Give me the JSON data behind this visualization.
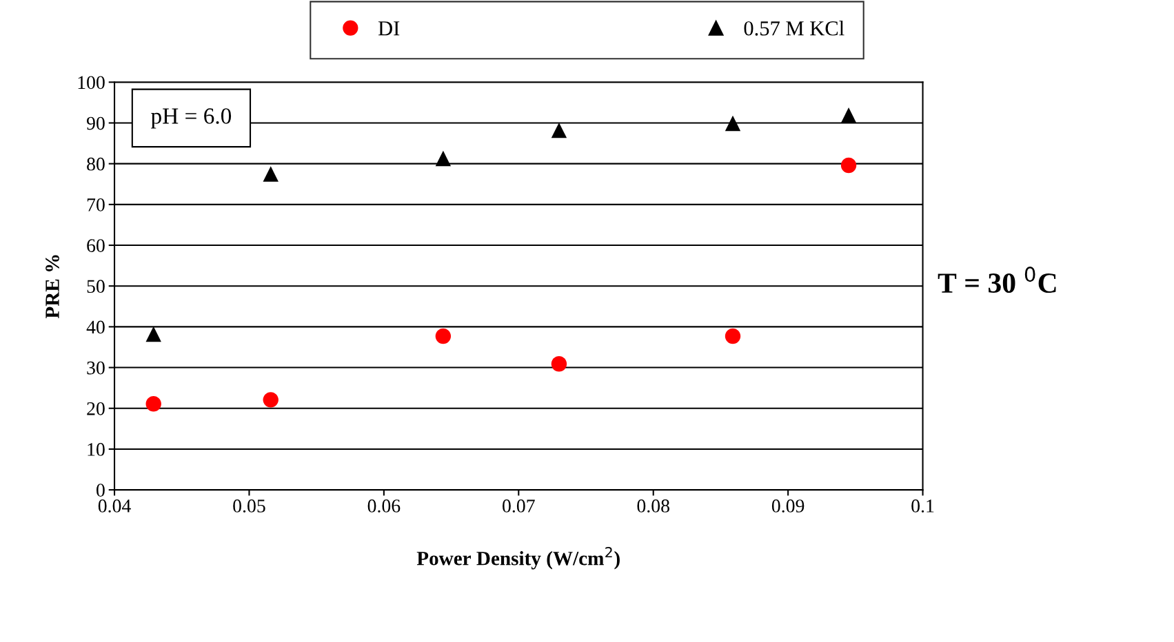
{
  "chart_data": {
    "type": "scatter",
    "xlabel": "Power Density (W/cm$^{2}$)",
    "ylabel": "PRE %",
    "x": [
      0.0429,
      0.0516,
      0.0644,
      0.073,
      0.0859,
      0.0945
    ],
    "series": [
      {
        "name": "DI",
        "color": "#ff0000",
        "marker": "circle",
        "values": [
          21.1,
          22.1,
          37.7,
          30.9,
          37.7,
          79.6
        ]
      },
      {
        "name": "0.57 M KCl",
        "color": "#000000",
        "marker": "triangle",
        "values": [
          38.2,
          77.5,
          81.3,
          88.2,
          89.9,
          91.9
        ]
      }
    ],
    "xlim": [
      0.04,
      0.1
    ],
    "xticks": [
      0.04,
      0.05,
      0.06,
      0.07,
      0.08,
      0.09,
      {
        "value": 0.1,
        "label": "0.1"
      }
    ],
    "ylim": [
      0,
      100
    ],
    "yticks": [
      0,
      10,
      20,
      30,
      40,
      50,
      60,
      70,
      80,
      90,
      100
    ],
    "grid": "y",
    "legend": "top",
    "annotations": [
      "pH = 6.0",
      "T = 30 $^{0}$C"
    ]
  }
}
